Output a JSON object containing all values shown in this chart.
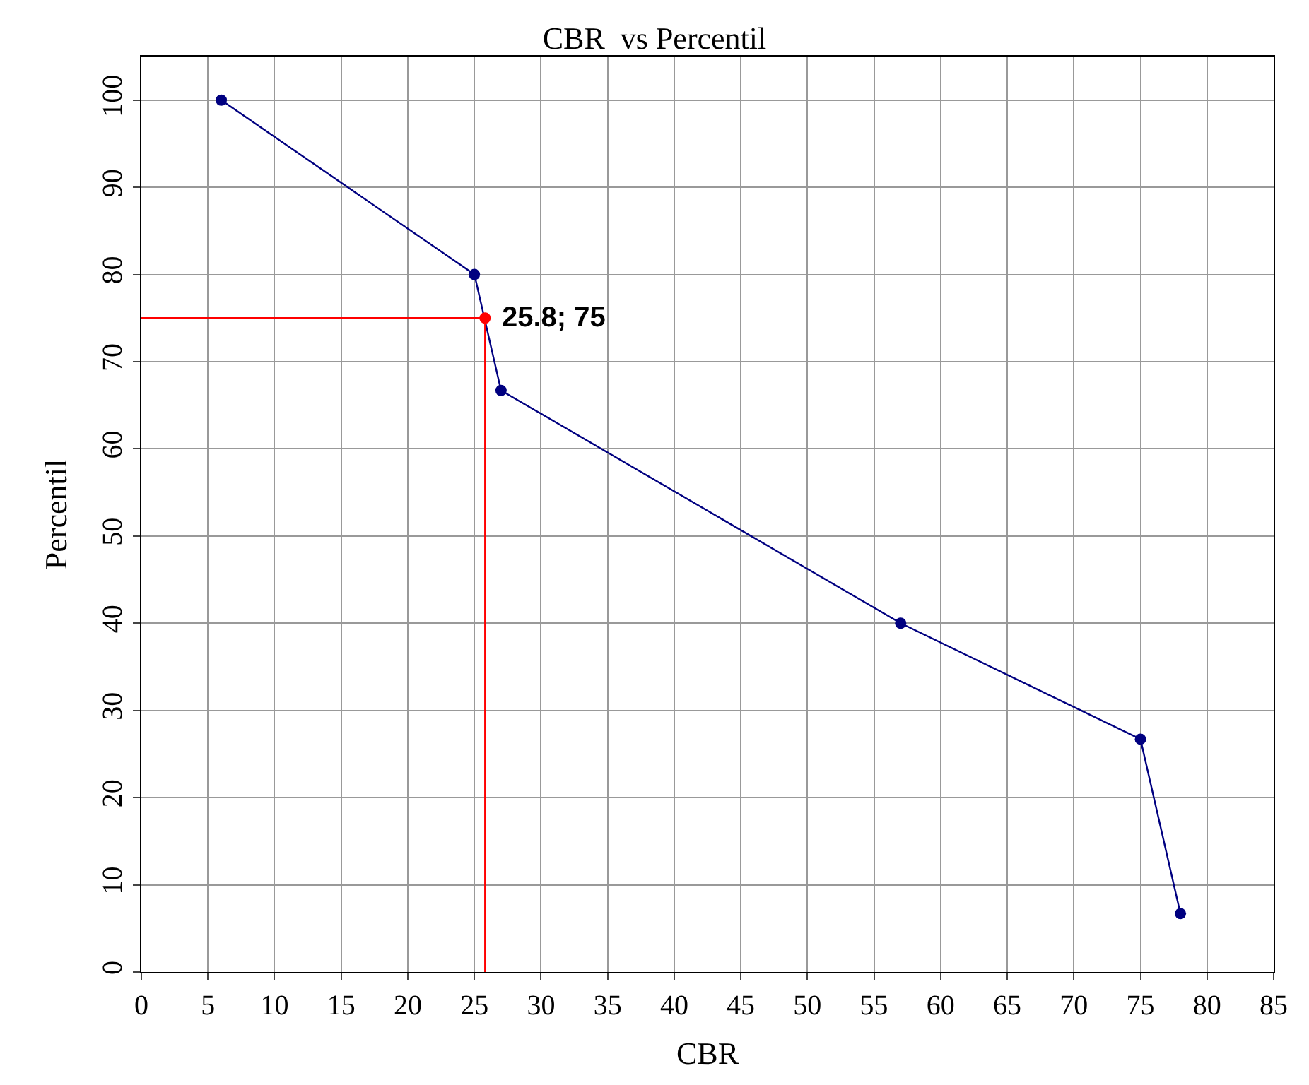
{
  "chart_data": {
    "type": "line",
    "title": "CBR  vs Percentil",
    "xlabel": "CBR",
    "ylabel": "Percentil",
    "x": [
      6,
      25,
      27,
      57,
      75,
      78
    ],
    "series": [
      {
        "color": "#000080",
        "values": [
          100,
          80,
          66.7,
          40,
          26.7,
          6.7
        ],
        "marker": "circle"
      },
      {
        "type": "scatter",
        "color": "#ff0000",
        "x": [
          25.8
        ],
        "values": [
          75
        ],
        "marker": "circle",
        "errors": [
          [
            0,
            75
          ]
        ],
        "xerrors": [
          [
            0,
            25.8
          ]
        ]
      }
    ],
    "annotations": [
      {
        "text": "25.8; 75",
        "x": 25.8,
        "y": 75
      }
    ],
    "xlim": [
      0,
      85
    ],
    "xticks": [
      0,
      5,
      10,
      15,
      20,
      25,
      30,
      35,
      40,
      45,
      50,
      55,
      60,
      65,
      70,
      75,
      80,
      85
    ],
    "ylim": [
      0,
      105
    ],
    "yticks": [
      0,
      10,
      20,
      30,
      40,
      50,
      60,
      70,
      80,
      90,
      100
    ],
    "grid": true,
    "line_style": "solid"
  }
}
